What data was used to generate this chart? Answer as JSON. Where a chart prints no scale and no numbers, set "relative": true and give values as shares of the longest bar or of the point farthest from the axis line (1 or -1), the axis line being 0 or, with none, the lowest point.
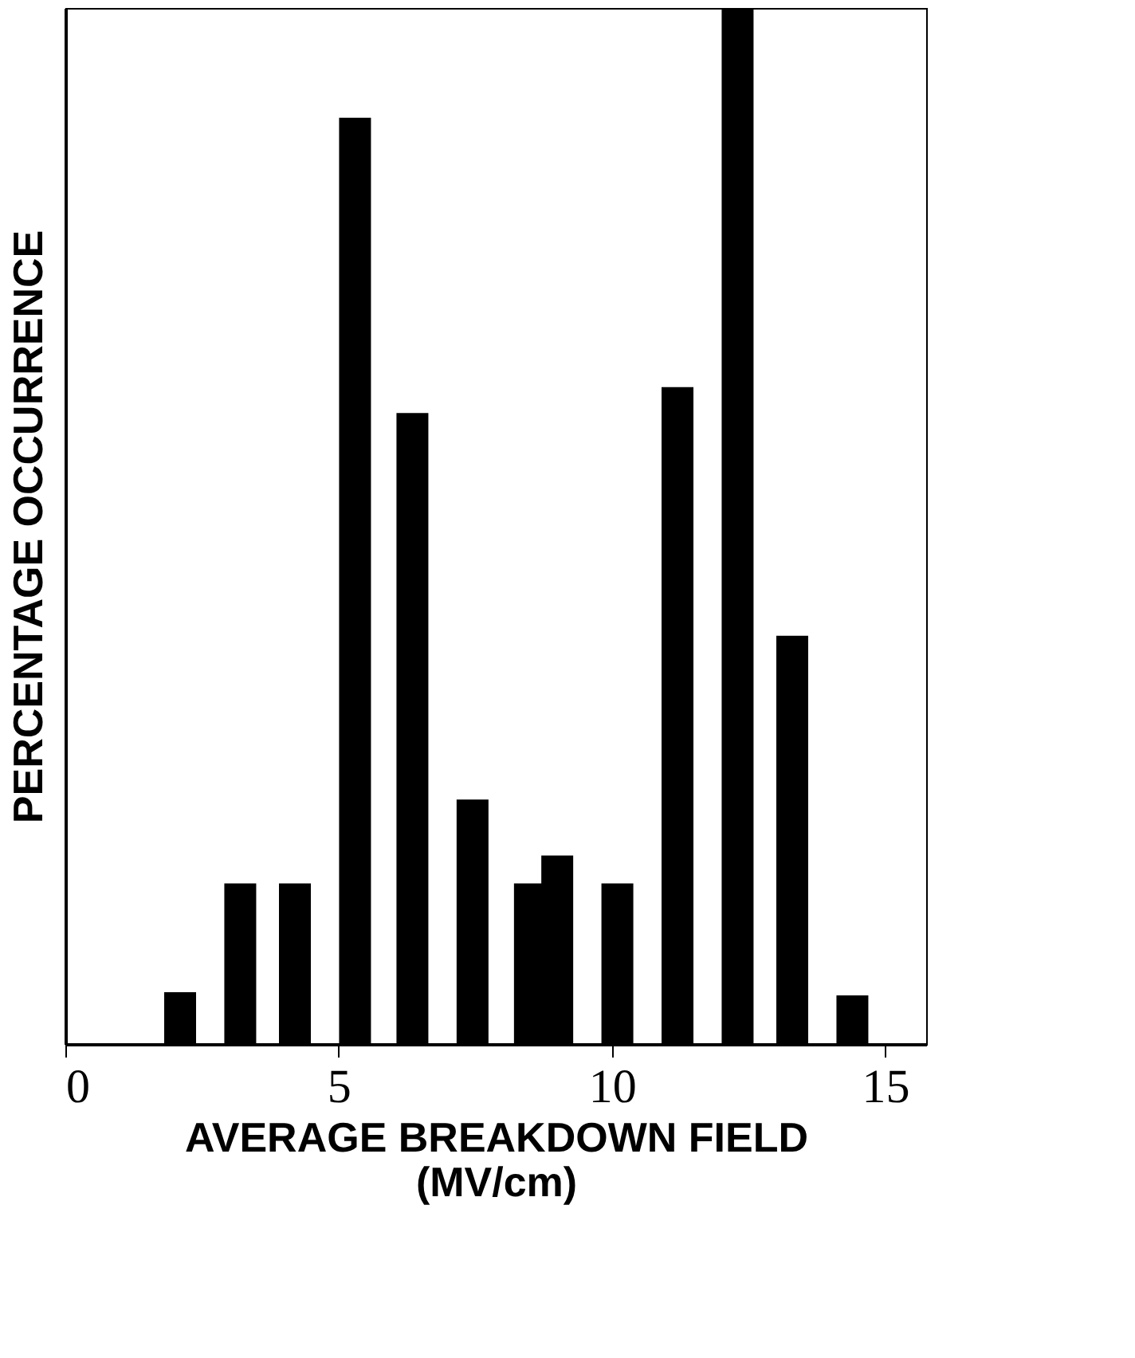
{
  "chart_data": {
    "type": "bar",
    "relative": true,
    "xlabel": "AVERAGE BREAKDOWN FIELD\n(MV/cm)",
    "ylabel": "PERCENTAGE OCCURRENCE",
    "x": [
      2.1,
      3.2,
      4.2,
      5.3,
      6.35,
      7.45,
      8.5,
      9.0,
      10.1,
      11.2,
      12.3,
      13.3,
      14.4
    ],
    "values": [
      0.05,
      0.155,
      0.155,
      0.894,
      0.609,
      0.236,
      0.155,
      0.182,
      0.155,
      0.634,
      1,
      0.394,
      0.047
    ],
    "color": "#000000",
    "xlim": [
      0,
      15.75
    ],
    "xticks": [
      0,
      5,
      10,
      15
    ],
    "grid": false
  }
}
